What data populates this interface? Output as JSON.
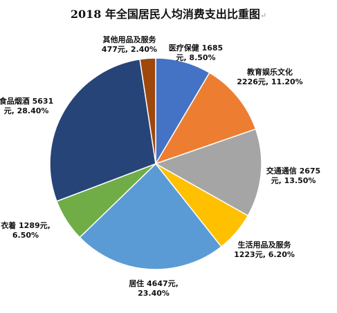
{
  "title": "2018 年全国居民人均消费支出比重图",
  "title_mark": "↵",
  "chart_data": {
    "type": "pie",
    "title": "2018 年全国居民人均消费支出比重图",
    "start_angle_deg": 0,
    "direction": "clockwise",
    "slices": [
      {
        "name": "医疗保健",
        "value": 1685,
        "percent": 8.5,
        "color": "#4472C4",
        "label_lines": [
          "医疗保健 1685",
          "元, 8.50%"
        ]
      },
      {
        "name": "教育娱乐文化",
        "value": 2226,
        "percent": 11.2,
        "color": "#ED7D31",
        "label_lines": [
          "教育娱乐文化",
          "2226元, 11.20%"
        ]
      },
      {
        "name": "交通通信",
        "value": 2675,
        "percent": 13.5,
        "color": "#A5A5A5",
        "label_lines": [
          "交通通信 2675",
          "元, 13.50%"
        ]
      },
      {
        "name": "生活用品及服务",
        "value": 1223,
        "percent": 6.2,
        "color": "#FFC000",
        "label_lines": [
          "生活用品及服务",
          "1223元, 6.20%"
        ]
      },
      {
        "name": "居住",
        "value": 4647,
        "percent": 23.4,
        "color": "#5B9BD5",
        "label_lines": [
          "居住 4647元,",
          "23.40%"
        ]
      },
      {
        "name": "衣着",
        "value": 1289,
        "percent": 6.5,
        "color": "#70AD47",
        "label_lines": [
          "衣着 1289元,",
          "6.50%"
        ]
      },
      {
        "name": "食品烟酒",
        "value": 5631,
        "percent": 28.4,
        "color": "#264478",
        "label_lines": [
          "食品烟酒 5631",
          "元, 28.40%"
        ]
      },
      {
        "name": "其他用品及服务",
        "value": 477,
        "percent": 2.4,
        "color": "#9E480E",
        "label_lines": [
          "其他用品及服务",
          "477元, 2.40%"
        ]
      }
    ]
  }
}
